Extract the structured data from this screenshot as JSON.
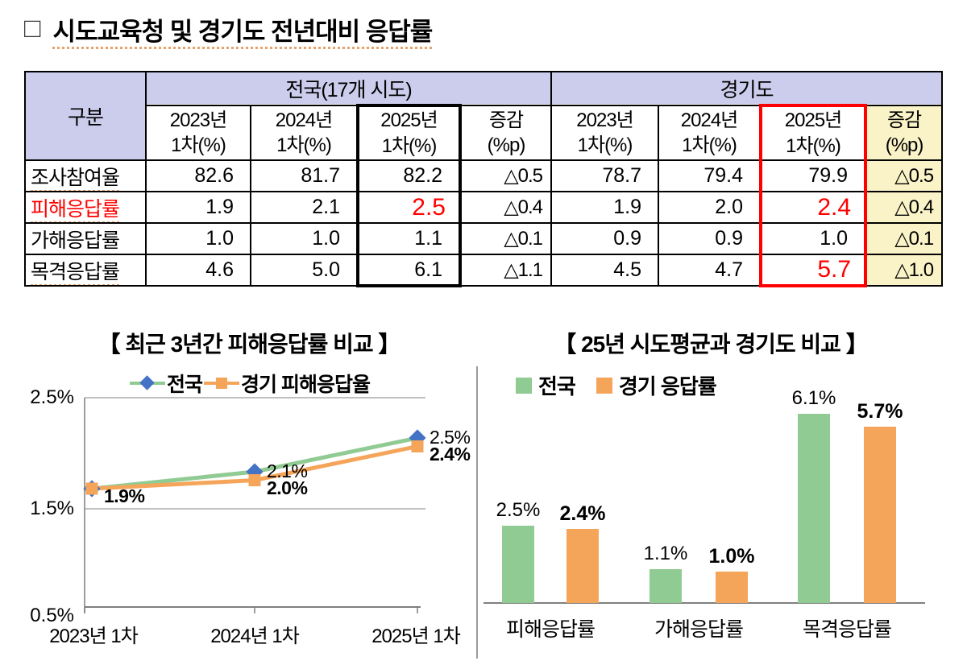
{
  "title": {
    "bullet": "□",
    "text": "시도교육청 및 경기도 전년대비 응답률"
  },
  "colors": {
    "header_lavender": "#CCCCEC",
    "diff_yellow": "#FAF3C8",
    "emphasis_red": "#FF0000",
    "national_green": "#8FCB92",
    "gyeonggi_orange": "#F5A55A",
    "national_marker_blue": "#4472C4",
    "grid_gray": "#ABABAB",
    "axis_gray": "#7F7F7F"
  },
  "table": {
    "corner": "구분",
    "group_national": "전국(17개 시도)",
    "group_gyeonggi": "경기도",
    "year_headers": [
      "2023년",
      "2024년",
      "2025년"
    ],
    "sub_header": "1차(%)",
    "diff_header_line1": "증감",
    "diff_header_line2": "(%p)",
    "rows": [
      {
        "label": "조사참여율",
        "values": [
          "82.6",
          "81.7",
          "82.2",
          "△0.5",
          "78.7",
          "79.4",
          "79.9",
          "△0.5"
        ]
      },
      {
        "label": "피해응답률",
        "values": [
          "1.9",
          "2.1",
          "2.5",
          "△0.4",
          "1.9",
          "2.0",
          "2.4",
          "△0.4"
        ]
      },
      {
        "label": "가해응답률",
        "values": [
          "1.0",
          "1.0",
          "1.1",
          "△0.1",
          "0.9",
          "0.9",
          "1.0",
          "△0.1"
        ]
      },
      {
        "label": "목격응답률",
        "values": [
          "4.6",
          "5.0",
          "6.1",
          "△1.1",
          "4.5",
          "4.7",
          "5.7",
          "△1.0"
        ]
      }
    ]
  },
  "chart_data": [
    {
      "type": "line",
      "title": "【 최근 3년간 피해응답률 비교 】",
      "categories": [
        "2023년 1차",
        "2024년 1차",
        "2025년 1차"
      ],
      "series": [
        {
          "name": "전국",
          "values": [
            1.9,
            2.1,
            2.5
          ],
          "labels": [
            "",
            "2.1%",
            "2.5%"
          ],
          "line_color": "#8FCB92",
          "marker": "diamond",
          "marker_color": "#4472C4",
          "bold_labels": false
        },
        {
          "name": "경기 피해응답율",
          "values": [
            1.9,
            2.0,
            2.4
          ],
          "labels": [
            "1.9%",
            "2.0%",
            "2.4%"
          ],
          "line_color": "#F5A55A",
          "marker": "square",
          "marker_color": "#F5A55A",
          "bold_labels": true
        }
      ],
      "ylim": [
        0.5,
        2.5
      ],
      "yticks": [
        "2.5%",
        "1.5%",
        "0.5%"
      ],
      "grid": true,
      "legend_position": "top"
    },
    {
      "type": "bar",
      "title": "【 25년 시도평균과 경기도 비교 】",
      "categories": [
        "피해응답률",
        "가해응답률",
        "목격응답률"
      ],
      "series": [
        {
          "name": "전국",
          "values": [
            2.5,
            1.1,
            6.1
          ],
          "labels": [
            "2.5%",
            "1.1%",
            "6.1%"
          ],
          "color": "#8FCB92",
          "bold_labels": false
        },
        {
          "name": "경기 응답률",
          "values": [
            2.4,
            1.0,
            5.7
          ],
          "labels": [
            "2.4%",
            "1.0%",
            "5.7%"
          ],
          "color": "#F5A55A",
          "bold_labels": true
        }
      ],
      "ylim": [
        0,
        7
      ],
      "grid": false,
      "legend_position": "top"
    }
  ]
}
